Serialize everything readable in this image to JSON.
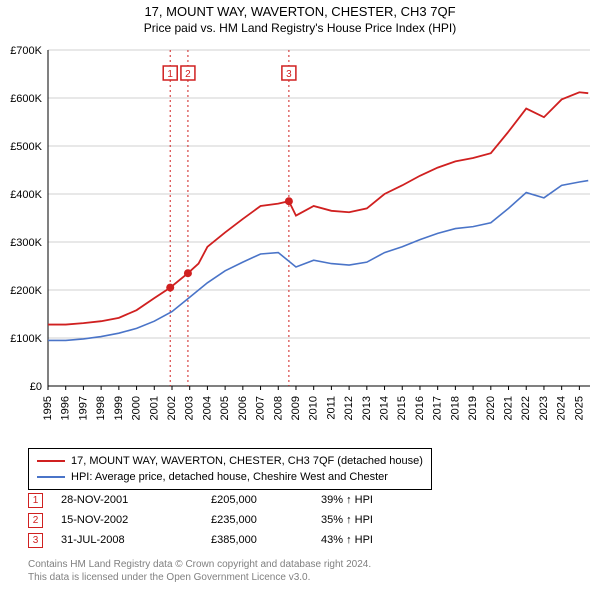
{
  "title_line1": "17, MOUNT WAY, WAVERTON, CHESTER, CH3 7QF",
  "title_line2": "Price paid vs. HM Land Registry's House Price Index (HPI)",
  "chart": {
    "type": "line",
    "background_color": "#ffffff",
    "grid_color": "#d0d0d0",
    "vline_color": "#d02020",
    "x_years": [
      1995,
      1996,
      1997,
      1998,
      1999,
      2000,
      2001,
      2002,
      2003,
      2004,
      2005,
      2006,
      2007,
      2008,
      2009,
      2010,
      2011,
      2012,
      2013,
      2014,
      2015,
      2016,
      2017,
      2018,
      2019,
      2020,
      2021,
      2022,
      2023,
      2024,
      2025
    ],
    "x_range": [
      1995,
      2025.6
    ],
    "ylim": [
      0,
      700000
    ],
    "ytick_step": 100000,
    "ytick_labels": [
      "£0",
      "£100K",
      "£200K",
      "£300K",
      "£400K",
      "£500K",
      "£600K",
      "£700K"
    ],
    "series": [
      {
        "name": "subject_property",
        "color": "#d02020",
        "width": 1.8,
        "points": [
          [
            1995,
            128000
          ],
          [
            1996,
            128000
          ],
          [
            1997,
            131000
          ],
          [
            1998,
            135000
          ],
          [
            1999,
            142000
          ],
          [
            2000,
            158000
          ],
          [
            2001,
            183000
          ],
          [
            2001.9,
            205000
          ],
          [
            2002.9,
            235000
          ],
          [
            2003.5,
            255000
          ],
          [
            2004,
            290000
          ],
          [
            2005,
            320000
          ],
          [
            2006,
            348000
          ],
          [
            2007,
            375000
          ],
          [
            2008,
            380000
          ],
          [
            2008.6,
            385000
          ],
          [
            2009,
            355000
          ],
          [
            2010,
            375000
          ],
          [
            2011,
            365000
          ],
          [
            2012,
            362000
          ],
          [
            2013,
            370000
          ],
          [
            2014,
            400000
          ],
          [
            2015,
            418000
          ],
          [
            2016,
            438000
          ],
          [
            2017,
            455000
          ],
          [
            2018,
            468000
          ],
          [
            2019,
            475000
          ],
          [
            2020,
            485000
          ],
          [
            2021,
            530000
          ],
          [
            2022,
            578000
          ],
          [
            2023,
            560000
          ],
          [
            2024,
            597000
          ],
          [
            2025,
            612000
          ],
          [
            2025.5,
            610000
          ]
        ]
      },
      {
        "name": "hpi_cheshire",
        "color": "#4a74c8",
        "width": 1.6,
        "points": [
          [
            1995,
            95000
          ],
          [
            1996,
            95000
          ],
          [
            1997,
            98000
          ],
          [
            1998,
            103000
          ],
          [
            1999,
            110000
          ],
          [
            2000,
            120000
          ],
          [
            2001,
            135000
          ],
          [
            2002,
            155000
          ],
          [
            2003,
            185000
          ],
          [
            2004,
            215000
          ],
          [
            2005,
            240000
          ],
          [
            2006,
            258000
          ],
          [
            2007,
            275000
          ],
          [
            2008,
            278000
          ],
          [
            2009,
            248000
          ],
          [
            2010,
            262000
          ],
          [
            2011,
            255000
          ],
          [
            2012,
            252000
          ],
          [
            2013,
            258000
          ],
          [
            2014,
            278000
          ],
          [
            2015,
            290000
          ],
          [
            2016,
            305000
          ],
          [
            2017,
            318000
          ],
          [
            2018,
            328000
          ],
          [
            2019,
            332000
          ],
          [
            2020,
            340000
          ],
          [
            2021,
            370000
          ],
          [
            2022,
            403000
          ],
          [
            2023,
            392000
          ],
          [
            2024,
            418000
          ],
          [
            2025,
            425000
          ],
          [
            2025.5,
            428000
          ]
        ]
      }
    ],
    "sale_markers": [
      {
        "label": "1",
        "x": 2001.9,
        "y": 205000
      },
      {
        "label": "2",
        "x": 2002.9,
        "y": 235000
      },
      {
        "label": "3",
        "x": 2008.6,
        "y": 385000
      }
    ],
    "marker_color": "#d02020",
    "label_pane_y": 32
  },
  "legend": {
    "items": [
      {
        "color": "#d02020",
        "text": "17, MOUNT WAY, WAVERTON, CHESTER, CH3 7QF (detached house)"
      },
      {
        "color": "#4a74c8",
        "text": "HPI: Average price, detached house, Cheshire West and Chester"
      }
    ]
  },
  "records": [
    {
      "n": "1",
      "date": "28-NOV-2001",
      "price": "£205,000",
      "delta": "39% ↑ HPI"
    },
    {
      "n": "2",
      "date": "15-NOV-2002",
      "price": "£235,000",
      "delta": "35% ↑ HPI"
    },
    {
      "n": "3",
      "date": "31-JUL-2008",
      "price": "£385,000",
      "delta": "43% ↑ HPI"
    }
  ],
  "record_marker_color": "#d02020",
  "attribution_line1": "Contains HM Land Registry data © Crown copyright and database right 2024.",
  "attribution_line2": "This data is licensed under the Open Government Licence v3.0."
}
